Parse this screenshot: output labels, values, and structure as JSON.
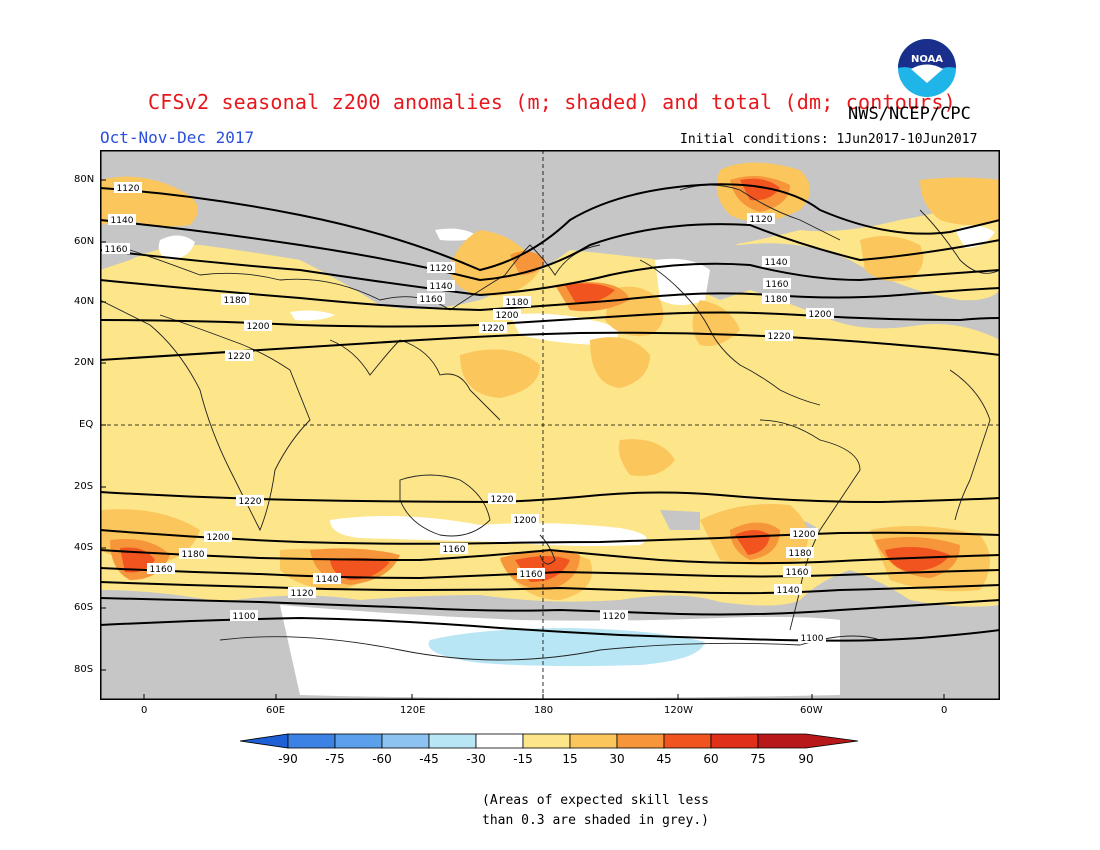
{
  "header": {
    "title": "CFSv2 seasonal z200 anomalies (m; shaded) and total (dm; contours)",
    "agency": "NWS/NCEP/CPC",
    "logo_text": "NOAA",
    "period": "Oct-Nov-Dec 2017",
    "initial_conditions": "Initial conditions: 1Jun2017-10Jun2017"
  },
  "map": {
    "lat_labels": [
      "80N",
      "60N",
      "40N",
      "20N",
      "EQ",
      "20S",
      "40S",
      "60S",
      "80S"
    ],
    "lon_labels": [
      "0",
      "60E",
      "120E",
      "180",
      "120W",
      "60W",
      "0"
    ],
    "contour_labels": [
      "1120",
      "1140",
      "1160",
      "1180",
      "1200",
      "1220",
      "1120",
      "1140",
      "1160",
      "1180",
      "1200",
      "1220",
      "1120",
      "1140",
      "1160",
      "1180",
      "1200",
      "1220",
      "1200",
      "1180",
      "1160",
      "1140",
      "1120",
      "1100",
      "1220",
      "1200",
      "1160",
      "1160",
      "1120",
      "1220",
      "1200",
      "1180",
      "1160",
      "1140",
      "1100"
    ]
  },
  "colorbar": {
    "tick_labels": [
      "-90",
      "-75",
      "-60",
      "-45",
      "-30",
      "-15",
      "15",
      "30",
      "45",
      "60",
      "75",
      "90"
    ],
    "colors": [
      "#1f5fd6",
      "#3b82e4",
      "#5aa0ea",
      "#8dc3f0",
      "#b9e6f4",
      "#ffffff",
      "#fde68a",
      "#fbc65c",
      "#f6953a",
      "#f2541f",
      "#e0301a",
      "#b8181a"
    ]
  },
  "note": {
    "line1": "(Areas of expected skill less",
    "line2": "than 0.3 are shaded in grey.)"
  }
}
